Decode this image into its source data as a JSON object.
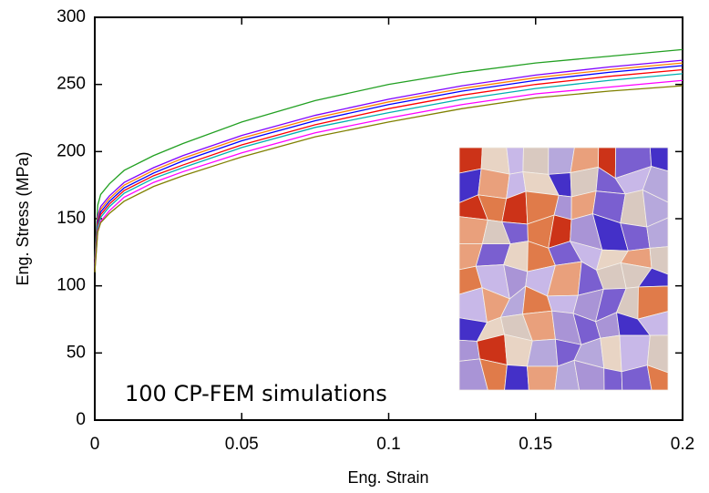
{
  "chart_data": {
    "type": "line",
    "xlabel": "Eng. Strain",
    "ylabel": "Eng. Stress (MPa)",
    "annotation": "100 CP-FEM simulations",
    "x": [
      0,
      0.001,
      0.002,
      0.005,
      0.01,
      0.02,
      0.03,
      0.05,
      0.075,
      0.1,
      0.125,
      0.15,
      0.175,
      0.2
    ],
    "series": [
      {
        "color": "#22a022",
        "values": [
          120,
          160,
          168,
          176,
          186,
          197,
          206,
          222,
          238,
          250,
          259,
          266,
          271,
          276
        ]
      },
      {
        "color": "#8000ff",
        "values": [
          117,
          152,
          159,
          167,
          177,
          188,
          197,
          212,
          227,
          239,
          249,
          257,
          263,
          268
        ]
      },
      {
        "color": "#ff8000",
        "values": [
          116,
          150,
          157,
          165,
          175,
          186,
          195,
          210,
          225,
          237,
          247,
          255,
          261,
          266
        ]
      },
      {
        "color": "#0000ff",
        "values": [
          115,
          148,
          155,
          163,
          173,
          184,
          193,
          208,
          223,
          235,
          245,
          253,
          259,
          264
        ]
      },
      {
        "color": "#ff0000",
        "values": [
          114,
          146,
          153,
          161,
          171,
          182,
          190,
          205,
          220,
          232,
          242,
          250,
          256,
          261
        ]
      },
      {
        "color": "#00b0b0",
        "values": [
          113,
          144,
          151,
          159,
          169,
          180,
          188,
          203,
          218,
          229,
          239,
          247,
          253,
          258
        ]
      },
      {
        "color": "#ff00ff",
        "values": [
          111,
          141,
          148,
          156,
          166,
          177,
          185,
          199,
          214,
          225,
          235,
          243,
          248,
          253
        ]
      },
      {
        "color": "#808000",
        "values": [
          110,
          140,
          147,
          154,
          163,
          174,
          182,
          196,
          211,
          222,
          232,
          240,
          245,
          249
        ]
      }
    ],
    "xlim": [
      0,
      0.2
    ],
    "xticks": [
      0,
      0.05,
      0.1,
      0.15,
      0.2
    ],
    "ylim": [
      0,
      300
    ],
    "yticks": [
      0,
      50,
      100,
      150,
      200,
      250,
      300
    ],
    "grid": false
  }
}
